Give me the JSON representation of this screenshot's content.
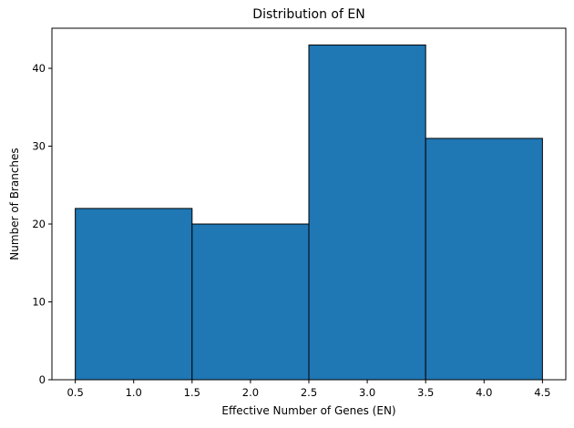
{
  "chart_data": {
    "type": "bar",
    "title": "Distribution of EN",
    "xlabel": "Effective Number of Genes (EN)",
    "ylabel": "Number of Branches",
    "bins": [
      {
        "x0": 0.5,
        "x1": 1.5,
        "value": 22
      },
      {
        "x0": 1.5,
        "x1": 2.5,
        "value": 20
      },
      {
        "x0": 2.5,
        "x1": 3.5,
        "value": 43
      },
      {
        "x0": 3.5,
        "x1": 4.5,
        "value": 31
      }
    ],
    "xlim": [
      0.3,
      4.7
    ],
    "ylim": [
      0,
      45.15
    ],
    "xticks": [
      0.5,
      1.0,
      1.5,
      2.0,
      2.5,
      3.0,
      3.5,
      4.0,
      4.5
    ],
    "xtick_labels": [
      "0.5",
      "1.0",
      "1.5",
      "2.0",
      "2.5",
      "3.0",
      "3.5",
      "4.0",
      "4.5"
    ],
    "yticks": [
      0,
      10,
      20,
      30,
      40
    ],
    "ytick_labels": [
      "0",
      "10",
      "20",
      "30",
      "40"
    ],
    "grid": false,
    "bar_color": "#1f77b4",
    "edge_color": "#000000"
  }
}
